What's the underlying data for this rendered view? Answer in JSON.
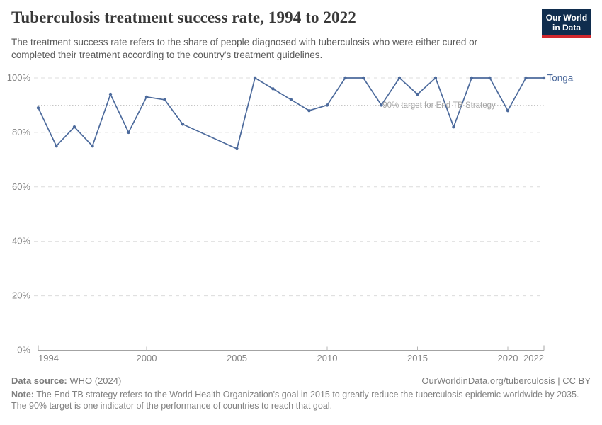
{
  "header": {
    "title": "Tuberculosis treatment success rate, 1994 to 2022",
    "subtitle": "The treatment success rate refers to the share of people diagnosed with tuberculosis who were either cured or completed their treatment according to the country's treatment guidelines.",
    "logo": {
      "line1": "Our World",
      "line2": "in Data",
      "bg_color": "#102d4e",
      "accent_color": "#d2282e"
    }
  },
  "chart_data": {
    "type": "line",
    "title": "Tuberculosis treatment success rate, 1994 to 2022",
    "xlabel": "",
    "ylabel": "",
    "xlim": [
      1994,
      2022
    ],
    "ylim": [
      0,
      100
    ],
    "grid": "horizontal-dashed",
    "legend_position": "end-of-line",
    "x_ticks": [
      1994,
      2000,
      2005,
      2010,
      2015,
      2020,
      2022
    ],
    "y_ticks": [
      0,
      20,
      40,
      60,
      80,
      100
    ],
    "y_tick_suffix": "%",
    "series": [
      {
        "name": "Tonga",
        "x": [
          1994,
          1995,
          1996,
          1997,
          1998,
          1999,
          2000,
          2001,
          2002,
          2005,
          2006,
          2007,
          2008,
          2009,
          2010,
          2011,
          2012,
          2013,
          2014,
          2015,
          2016,
          2017,
          2018,
          2019,
          2020,
          2021,
          2022
        ],
        "values": [
          89,
          75,
          82,
          75,
          94,
          80,
          93,
          92,
          83,
          74,
          100,
          96,
          92,
          88,
          90,
          100,
          100,
          90,
          100,
          94,
          100,
          82,
          100,
          100,
          88,
          100,
          100
        ]
      }
    ],
    "target_line": {
      "value": 90,
      "label": "90% target for End TB Strategy"
    },
    "colors": {
      "line": "#4c6a9c",
      "grid": "#dcdcdc",
      "target_line": "#c6c6c6",
      "target_label": "#a6a6a6",
      "axis": "#a3a3a3",
      "tick": "#b5b5b5",
      "tick_label": "#858585"
    }
  },
  "footer": {
    "datasource_label": "Data source:",
    "datasource_value": " WHO (2024)",
    "link": "OurWorldinData.org/tuberculosis | CC BY",
    "note_label": "Note:",
    "note_text": " The End TB strategy refers to the World Health Organization's goal in 2015 to greatly reduce the tuberculosis epidemic worldwide by 2035. The 90% target is one indicator of the performance of countries to reach that goal."
  }
}
